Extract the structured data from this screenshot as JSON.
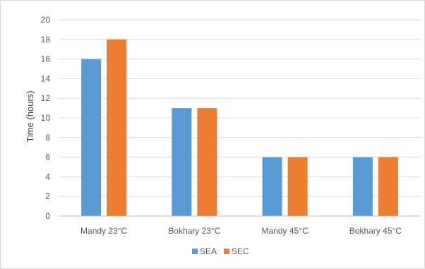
{
  "chart_data": {
    "type": "bar",
    "title": "",
    "xlabel": "",
    "ylabel": "Time (hours)",
    "ylim": [
      0,
      20
    ],
    "y_ticks": [
      0,
      2,
      4,
      6,
      8,
      10,
      12,
      14,
      16,
      18,
      20
    ],
    "grid": true,
    "legend_position": "bottom",
    "categories": [
      "Mandy 23°C",
      "Bokhary 23°C",
      "Mandy 45°C",
      "Bokhary 45°C"
    ],
    "series": [
      {
        "name": "SEA",
        "color": "#5b9bd5",
        "values": [
          16,
          11,
          6,
          6
        ]
      },
      {
        "name": "SEC",
        "color": "#ed7d31",
        "values": [
          18,
          11,
          6,
          6
        ]
      }
    ]
  }
}
